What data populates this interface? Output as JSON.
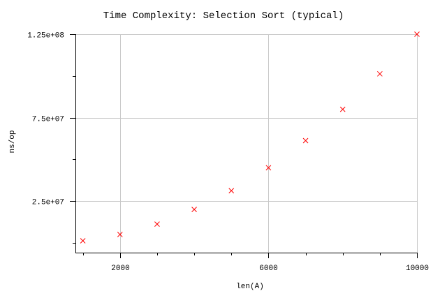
{
  "chart_data": {
    "type": "scatter",
    "title": "Time Complexity: Selection Sort (typical)",
    "xlabel": "len(A)",
    "ylabel": "ns/op",
    "xlim": [
      800,
      10000
    ],
    "ylim": [
      0,
      125000000
    ],
    "x_major_ticks": [
      {
        "value": 2000,
        "label": "2000"
      },
      {
        "value": 6000,
        "label": "6000"
      },
      {
        "value": 10000,
        "label": "10000"
      }
    ],
    "x_minor_ticks": [
      1000,
      3000,
      4000,
      5000,
      7000,
      8000,
      9000
    ],
    "y_major_ticks": [
      {
        "value": 25000000,
        "label": "2.5e+07"
      },
      {
        "value": 75000000,
        "label": "7.5e+07"
      },
      {
        "value": 125000000,
        "label": "1.25e+08"
      }
    ],
    "y_minor_ticks": [
      0,
      50000000,
      100000000
    ],
    "grid": true,
    "series": [
      {
        "color": "#ff0000",
        "marker": "x",
        "x": [
          1000,
          2000,
          3000,
          4000,
          5000,
          6000,
          7000,
          8000,
          9000,
          10000
        ],
        "y": [
          1250000,
          5000000,
          11250000,
          20000000,
          31250000,
          45000000,
          61250000,
          80000000,
          101250000,
          125000000
        ]
      }
    ]
  }
}
